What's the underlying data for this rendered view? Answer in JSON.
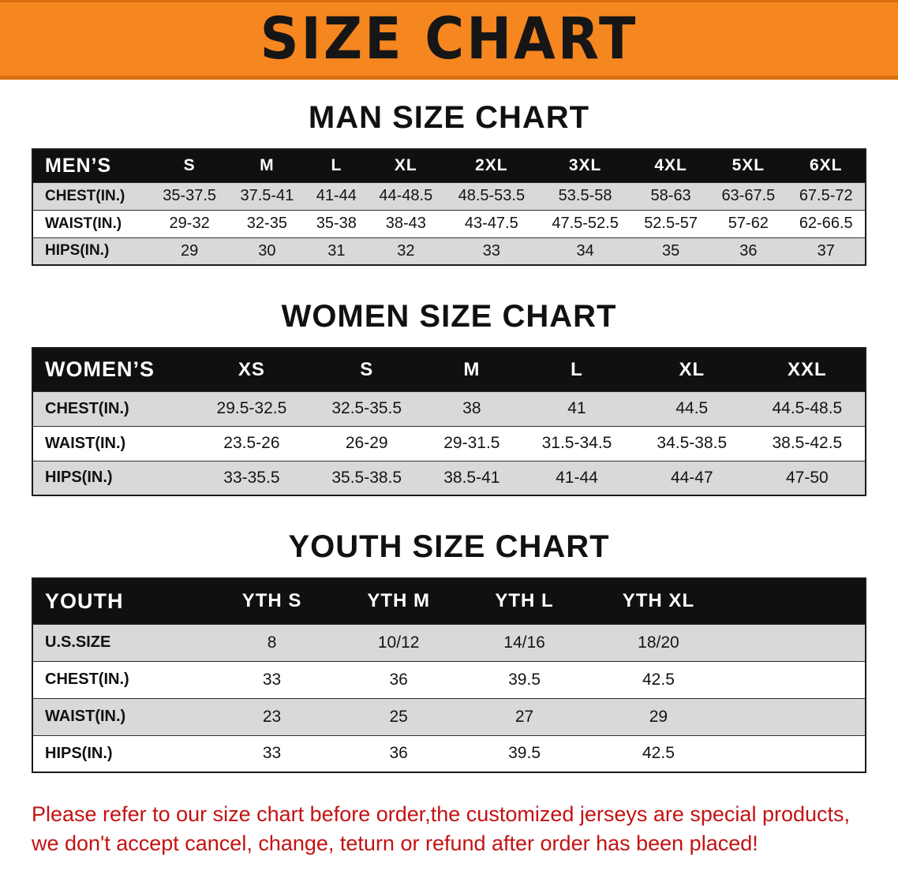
{
  "banner": {
    "title": "SIZE CHART",
    "bg_color": "#f6861f",
    "text_color": "#161616"
  },
  "chart_data": [
    {
      "type": "table",
      "title": "MAN SIZE CHART",
      "header": [
        "MEN’S",
        "S",
        "M",
        "L",
        "XL",
        "2XL",
        "3XL",
        "4XL",
        "5XL",
        "6XL"
      ],
      "rows": [
        [
          "CHEST(IN.)",
          "35-37.5",
          "37.5-41",
          "41-44",
          "44-48.5",
          "48.5-53.5",
          "53.5-58",
          "58-63",
          "63-67.5",
          "67.5-72"
        ],
        [
          "WAIST(IN.)",
          "29-32",
          "32-35",
          "35-38",
          "38-43",
          "43-47.5",
          "47.5-52.5",
          "52.5-57",
          "57-62",
          "62-66.5"
        ],
        [
          "HIPS(IN.)",
          "29",
          "30",
          "31",
          "32",
          "33",
          "34",
          "35",
          "36",
          "37"
        ]
      ]
    },
    {
      "type": "table",
      "title": "WOMEN SIZE CHART",
      "header": [
        "WOMEN’S",
        "XS",
        "S",
        "M",
        "L",
        "XL",
        "XXL"
      ],
      "rows": [
        [
          "CHEST(IN.)",
          "29.5-32.5",
          "32.5-35.5",
          "38",
          "41",
          "44.5",
          "44.5-48.5"
        ],
        [
          "WAIST(IN.)",
          "23.5-26",
          "26-29",
          "29-31.5",
          "31.5-34.5",
          "34.5-38.5",
          "38.5-42.5"
        ],
        [
          "HIPS(IN.)",
          "33-35.5",
          "35.5-38.5",
          "38.5-41",
          "41-44",
          "44-47",
          "47-50"
        ]
      ]
    },
    {
      "type": "table",
      "title": "YOUTH SIZE CHART",
      "header": [
        "YOUTH",
        "YTH S",
        "YTH M",
        "YTH L",
        "YTH XL"
      ],
      "rows": [
        [
          "U.S.SIZE",
          "8",
          "10/12",
          "14/16",
          "18/20"
        ],
        [
          "CHEST(IN.)",
          "33",
          "36",
          "39.5",
          "42.5"
        ],
        [
          "WAIST(IN.)",
          "23",
          "25",
          "27",
          "29"
        ],
        [
          "HIPS(IN.)",
          "33",
          "36",
          "39.5",
          "42.5"
        ]
      ]
    }
  ],
  "disclaimer": {
    "line1": "Please refer to our size chart before order,the customized jerseys are special products,",
    "line2": "we don't accept cancel, change, teturn or refund after order has been placed!",
    "color": "#c41212"
  }
}
